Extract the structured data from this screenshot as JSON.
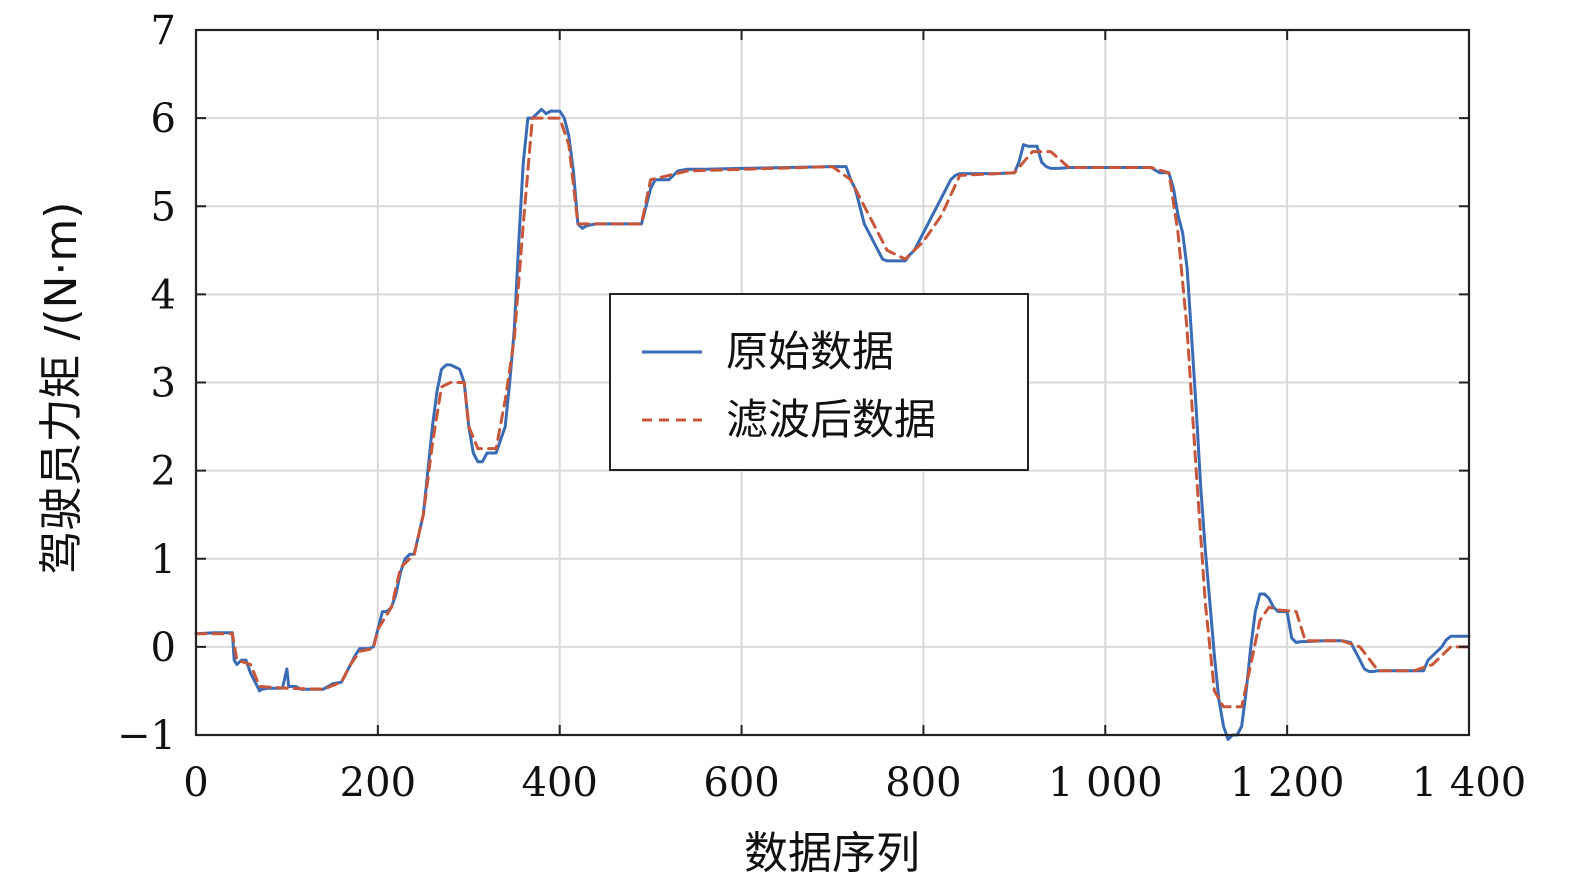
{
  "chart_data": {
    "type": "line",
    "xlabel": "数据序列",
    "ylabel": "驾驶员力矩 /(N·m)",
    "xlim": [
      0,
      1400
    ],
    "ylim": [
      -1,
      7
    ],
    "x_ticks": [
      0,
      200,
      400,
      600,
      800,
      1000,
      1200,
      1400
    ],
    "x_tick_labels": [
      "0",
      "200",
      "400",
      "600",
      "800",
      "1 000",
      "1 200",
      "1 400"
    ],
    "y_ticks": [
      -1,
      0,
      1,
      2,
      3,
      4,
      5,
      6,
      7
    ],
    "y_tick_labels": [
      "−1",
      "0",
      "1",
      "2",
      "3",
      "4",
      "5",
      "6",
      "7"
    ],
    "grid": true,
    "legend_position": "center",
    "series": [
      {
        "name": "原始数据",
        "color": "#3a6bb5",
        "style": "solid",
        "x": [
          0,
          20,
          40,
          42,
          45,
          50,
          55,
          60,
          65,
          70,
          72,
          80,
          95,
          100,
          102,
          110,
          115,
          120,
          130,
          140,
          150,
          160,
          165,
          170,
          175,
          180,
          190,
          195,
          200,
          205,
          210,
          215,
          220,
          225,
          230,
          235,
          240,
          250,
          255,
          260,
          265,
          270,
          275,
          280,
          290,
          295,
          300,
          305,
          310,
          315,
          320,
          330,
          340,
          345,
          350,
          355,
          360,
          365,
          370,
          375,
          380,
          385,
          390,
          395,
          400,
          405,
          410,
          415,
          420,
          425,
          430,
          440,
          460,
          480,
          490,
          495,
          500,
          505,
          510,
          520,
          530,
          540,
          560,
          600,
          650,
          700,
          715,
          720,
          725,
          730,
          735,
          740,
          745,
          750,
          755,
          760,
          770,
          780,
          785,
          790,
          795,
          800,
          805,
          810,
          815,
          820,
          825,
          830,
          835,
          840,
          860,
          880,
          900,
          905,
          910,
          915,
          920,
          925,
          930,
          935,
          940,
          950,
          960,
          1000,
          1050,
          1060,
          1070,
          1075,
          1080,
          1085,
          1090,
          1095,
          1100,
          1105,
          1110,
          1115,
          1120,
          1125,
          1130,
          1135,
          1140,
          1145,
          1150,
          1155,
          1160,
          1165,
          1170,
          1175,
          1180,
          1185,
          1190,
          1200,
          1205,
          1210,
          1215,
          1220,
          1240,
          1260,
          1270,
          1275,
          1280,
          1285,
          1290,
          1295,
          1300,
          1320,
          1340,
          1350,
          1355,
          1360,
          1365,
          1370,
          1375,
          1380,
          1390,
          1400
        ],
        "values": [
          0.15,
          0.16,
          0.16,
          -0.15,
          -0.2,
          -0.15,
          -0.15,
          -0.3,
          -0.4,
          -0.5,
          -0.48,
          -0.47,
          -0.47,
          -0.25,
          -0.45,
          -0.45,
          -0.48,
          -0.48,
          -0.48,
          -0.48,
          -0.42,
          -0.4,
          -0.3,
          -0.2,
          -0.1,
          -0.02,
          -0.02,
          0.0,
          0.2,
          0.4,
          0.4,
          0.45,
          0.6,
          0.85,
          1.0,
          1.05,
          1.05,
          1.5,
          2.0,
          2.5,
          2.9,
          3.15,
          3.2,
          3.2,
          3.15,
          3.0,
          2.5,
          2.2,
          2.1,
          2.1,
          2.2,
          2.2,
          2.5,
          3.0,
          3.6,
          4.6,
          5.5,
          6.0,
          6.0,
          6.05,
          6.1,
          6.05,
          6.08,
          6.08,
          6.08,
          6.0,
          5.8,
          5.4,
          4.8,
          4.75,
          4.78,
          4.8,
          4.8,
          4.8,
          4.8,
          5.0,
          5.2,
          5.3,
          5.3,
          5.3,
          5.4,
          5.42,
          5.42,
          5.43,
          5.44,
          5.45,
          5.45,
          5.3,
          5.2,
          5.0,
          4.8,
          4.7,
          4.6,
          4.5,
          4.4,
          4.38,
          4.38,
          4.38,
          4.45,
          4.5,
          4.6,
          4.7,
          4.8,
          4.9,
          5.0,
          5.1,
          5.2,
          5.3,
          5.35,
          5.37,
          5.37,
          5.37,
          5.38,
          5.5,
          5.7,
          5.68,
          5.68,
          5.68,
          5.5,
          5.45,
          5.43,
          5.43,
          5.44,
          5.44,
          5.44,
          5.38,
          5.38,
          5.2,
          4.9,
          4.7,
          4.3,
          3.5,
          2.7,
          1.8,
          1.1,
          0.5,
          -0.1,
          -0.6,
          -0.9,
          -1.05,
          -1.0,
          -1.0,
          -0.9,
          -0.5,
          0.0,
          0.4,
          0.6,
          0.6,
          0.55,
          0.45,
          0.4,
          0.4,
          0.1,
          0.05,
          0.06,
          0.06,
          0.07,
          0.07,
          0.05,
          -0.05,
          -0.15,
          -0.25,
          -0.28,
          -0.28,
          -0.27,
          -0.27,
          -0.27,
          -0.27,
          -0.15,
          -0.1,
          -0.05,
          0.0,
          0.08,
          0.12,
          0.12,
          0.12
        ]
      },
      {
        "name": "滤波后数据",
        "color": "#c8563a",
        "style": "dashed",
        "x": [
          0,
          40,
          45,
          60,
          70,
          100,
          140,
          160,
          170,
          180,
          195,
          200,
          215,
          225,
          240,
          250,
          260,
          270,
          280,
          295,
          300,
          310,
          330,
          340,
          350,
          360,
          370,
          400,
          410,
          420,
          430,
          490,
          500,
          520,
          540,
          700,
          720,
          740,
          760,
          780,
          800,
          820,
          840,
          900,
          920,
          940,
          960,
          1050,
          1070,
          1080,
          1090,
          1100,
          1110,
          1120,
          1130,
          1140,
          1150,
          1160,
          1170,
          1180,
          1190,
          1210,
          1220,
          1260,
          1280,
          1300,
          1320,
          1340,
          1360,
          1380,
          1400
        ],
        "values": [
          0.15,
          0.15,
          -0.15,
          -0.2,
          -0.45,
          -0.47,
          -0.48,
          -0.4,
          -0.2,
          -0.05,
          -0.02,
          0.2,
          0.45,
          0.9,
          1.05,
          1.5,
          2.3,
          2.95,
          3.0,
          3.0,
          2.5,
          2.25,
          2.25,
          2.8,
          3.5,
          4.8,
          6.0,
          6.0,
          5.7,
          4.8,
          4.8,
          4.8,
          5.3,
          5.35,
          5.4,
          5.45,
          5.3,
          4.9,
          4.5,
          4.4,
          4.6,
          4.9,
          5.35,
          5.38,
          5.62,
          5.62,
          5.44,
          5.44,
          5.38,
          4.7,
          3.6,
          2.0,
          0.5,
          -0.5,
          -0.68,
          -0.68,
          -0.68,
          -0.2,
          0.3,
          0.45,
          0.42,
          0.4,
          0.07,
          0.07,
          0.0,
          -0.27,
          -0.27,
          -0.27,
          -0.2,
          0.0,
          0.0
        ]
      }
    ]
  }
}
